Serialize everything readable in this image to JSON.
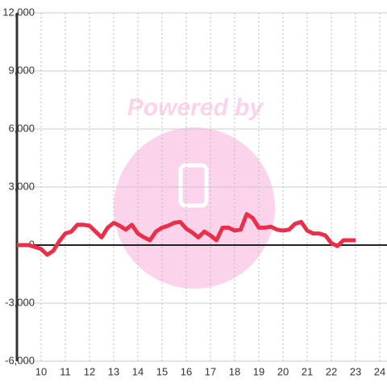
{
  "chart_data": {
    "type": "line",
    "watermark": "Powered by",
    "x": [
      9,
      9.25,
      9.5,
      9.75,
      10,
      10.25,
      10.5,
      10.75,
      11,
      11.25,
      11.5,
      11.75,
      12,
      12.25,
      12.5,
      12.75,
      13,
      13.25,
      13.5,
      13.75,
      14,
      14.25,
      14.5,
      14.75,
      15,
      15.25,
      15.5,
      15.75,
      16,
      16.25,
      16.5,
      16.75,
      17,
      17.25,
      17.5,
      17.75,
      18,
      18.25,
      18.5,
      18.75,
      19,
      19.25,
      19.5,
      19.75,
      20,
      20.25,
      20.5,
      20.75,
      21,
      21.25,
      21.5,
      21.75,
      22,
      22.25,
      22.5,
      22.75,
      23
    ],
    "series": [
      {
        "color": "#e8304a",
        "values": [
          0,
          0,
          0,
          -100,
          -200,
          -500,
          -300,
          200,
          600,
          700,
          1050,
          1050,
          1000,
          700,
          400,
          900,
          1150,
          1000,
          800,
          1050,
          600,
          400,
          250,
          700,
          900,
          1000,
          1150,
          1200,
          850,
          650,
          400,
          700,
          500,
          250,
          900,
          900,
          750,
          800,
          1600,
          1400,
          900,
          900,
          950,
          800,
          750,
          800,
          1100,
          1200,
          750,
          600,
          600,
          500,
          100,
          -50,
          250,
          250,
          250
        ]
      }
    ],
    "xlim": [
      9,
      24.3
    ],
    "xticks": [
      10,
      11,
      12,
      13,
      14,
      15,
      16,
      17,
      18,
      19,
      20,
      21,
      22,
      23,
      24
    ],
    "ylim": [
      -6000,
      12000
    ],
    "yticks": [
      {
        "value": -6000,
        "label": "-6,000"
      },
      {
        "value": -3000,
        "label": "-3,000"
      },
      0,
      {
        "value": 3000,
        "label": "3,000"
      },
      {
        "value": 6000,
        "label": "6,000"
      },
      {
        "value": 9000,
        "label": "9,000"
      },
      {
        "value": 12000,
        "label": "12,000"
      }
    ],
    "grid": true
  }
}
